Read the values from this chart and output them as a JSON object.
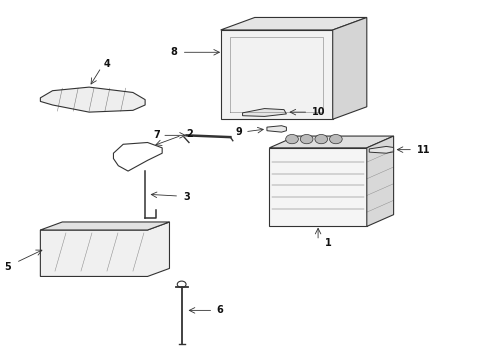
{
  "bg_color": "#ffffff",
  "line_color": "#333333",
  "text_color": "#111111"
}
